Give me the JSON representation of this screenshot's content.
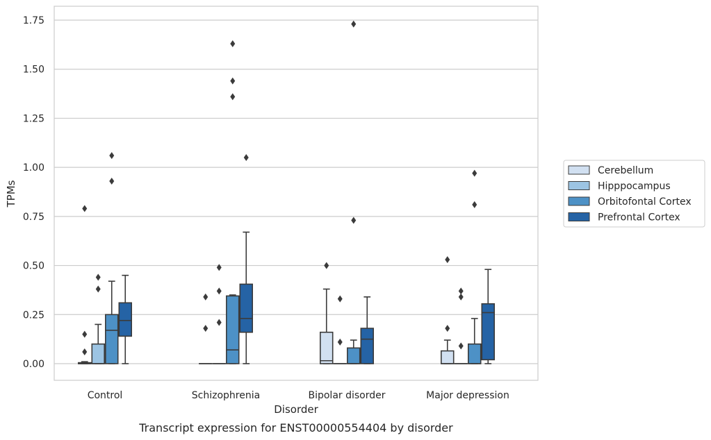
{
  "chart_data": {
    "type": "box",
    "caption": "Transcript expression for ENST00000554404 by disorder",
    "xlabel": "Disorder",
    "ylabel": "TPMs",
    "ylim": [
      -0.085,
      1.82
    ],
    "yticks": [
      0.0,
      0.25,
      0.5,
      0.75,
      1.0,
      1.25,
      1.5,
      1.75
    ],
    "ytick_labels": [
      "0.00",
      "0.25",
      "0.50",
      "0.75",
      "1.00",
      "1.25",
      "1.50",
      "1.75"
    ],
    "grid": "horizontal",
    "legend_position": "right",
    "categories": [
      "Control",
      "Schizophrenia",
      "Bipolar disorder",
      "Major depression"
    ],
    "series": [
      {
        "name": "Cerebellum",
        "color": "#d1e0f1",
        "boxes": [
          {
            "whisker_low": 0.0,
            "q1": 0.0,
            "median": 0.0,
            "q3": 0.005,
            "whisker_high": 0.01,
            "outliers": [
              0.06,
              0.15,
              0.79
            ]
          },
          {
            "whisker_low": 0.0,
            "q1": 0.0,
            "median": 0.0,
            "q3": 0.0,
            "whisker_high": 0.0,
            "outliers": [
              0.18,
              0.34
            ]
          },
          {
            "whisker_low": 0.0,
            "q1": 0.0,
            "median": 0.015,
            "q3": 0.16,
            "whisker_high": 0.38,
            "outliers": [
              0.5
            ]
          },
          {
            "whisker_low": 0.0,
            "q1": 0.0,
            "median": 0.0,
            "q3": 0.065,
            "whisker_high": 0.12,
            "outliers": [
              0.18,
              0.53
            ]
          }
        ]
      },
      {
        "name": "Hipppocampus",
        "color": "#9cc4e3",
        "boxes": [
          {
            "whisker_low": 0.0,
            "q1": 0.0,
            "median": 0.0,
            "q3": 0.1,
            "whisker_high": 0.2,
            "outliers": [
              0.38,
              0.44
            ]
          },
          {
            "whisker_low": 0.0,
            "q1": 0.0,
            "median": 0.0,
            "q3": 0.0,
            "whisker_high": 0.0,
            "outliers": [
              0.21,
              0.37,
              0.49
            ]
          },
          {
            "whisker_low": 0.0,
            "q1": 0.0,
            "median": 0.0,
            "q3": 0.0,
            "whisker_high": 0.0,
            "outliers": [
              0.11,
              0.33
            ]
          },
          {
            "whisker_low": 0.0,
            "q1": 0.0,
            "median": 0.0,
            "q3": 0.0,
            "whisker_high": 0.0,
            "outliers": [
              0.09,
              0.34,
              0.37
            ]
          }
        ]
      },
      {
        "name": "Orbitofontal Cortex",
        "color": "#4d91c6",
        "boxes": [
          {
            "whisker_low": 0.0,
            "q1": 0.0,
            "median": 0.17,
            "q3": 0.25,
            "whisker_high": 0.42,
            "outliers": [
              0.93,
              1.06
            ]
          },
          {
            "whisker_low": 0.0,
            "q1": 0.0,
            "median": 0.07,
            "q3": 0.345,
            "whisker_high": 0.35,
            "outliers": [
              1.36,
              1.44,
              1.63
            ]
          },
          {
            "whisker_low": 0.0,
            "q1": 0.0,
            "median": 0.0,
            "q3": 0.08,
            "whisker_high": 0.12,
            "outliers": [
              0.73,
              1.73
            ]
          },
          {
            "whisker_low": 0.0,
            "q1": 0.0,
            "median": 0.0,
            "q3": 0.1,
            "whisker_high": 0.23,
            "outliers": [
              0.81,
              0.97
            ]
          }
        ]
      },
      {
        "name": "Prefrontal Cortex",
        "color": "#2563a5",
        "boxes": [
          {
            "whisker_low": 0.0,
            "q1": 0.14,
            "median": 0.22,
            "q3": 0.31,
            "whisker_high": 0.45,
            "outliers": []
          },
          {
            "whisker_low": 0.0,
            "q1": 0.16,
            "median": 0.23,
            "q3": 0.405,
            "whisker_high": 0.67,
            "outliers": [
              1.05
            ]
          },
          {
            "whisker_low": 0.0,
            "q1": 0.0,
            "median": 0.125,
            "q3": 0.18,
            "whisker_high": 0.34,
            "outliers": []
          },
          {
            "whisker_low": 0.0,
            "q1": 0.02,
            "median": 0.26,
            "q3": 0.305,
            "whisker_high": 0.48,
            "outliers": []
          }
        ]
      }
    ]
  }
}
